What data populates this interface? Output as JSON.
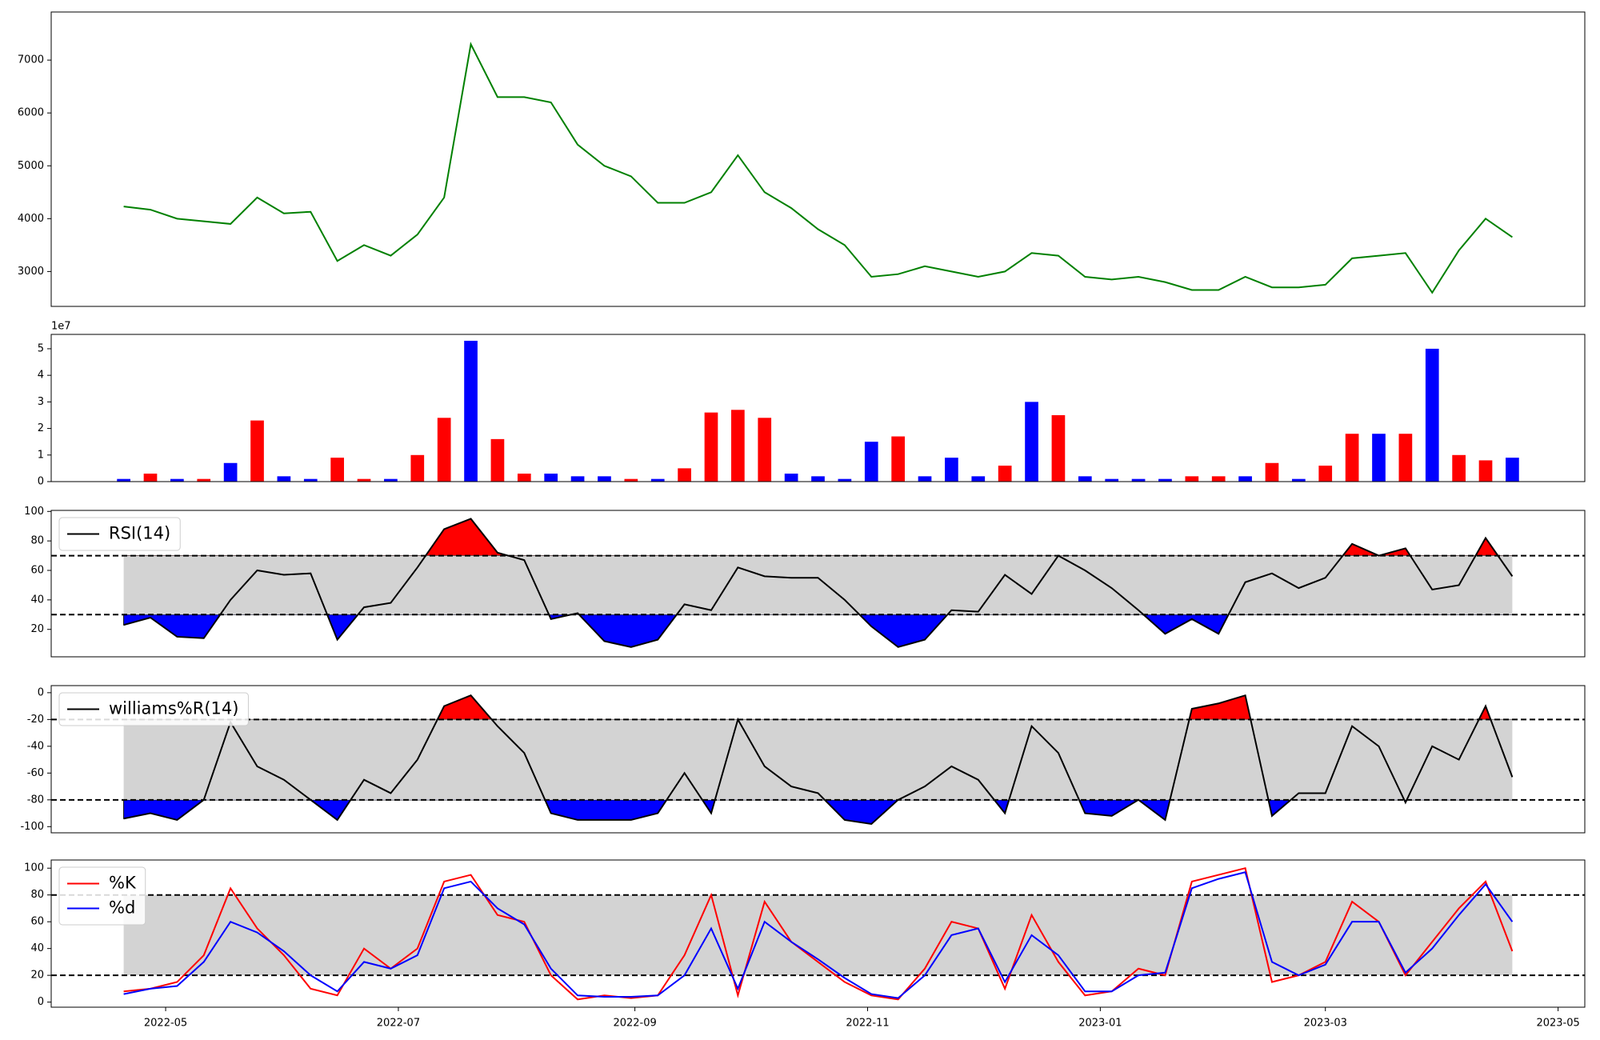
{
  "chart_data": [
    {
      "type": "line",
      "x": [
        "2022-04-20",
        "2022-04-27",
        "2022-05-04",
        "2022-05-11",
        "2022-05-18",
        "2022-05-25",
        "2022-06-01",
        "2022-06-08",
        "2022-06-15",
        "2022-06-22",
        "2022-06-29",
        "2022-07-06",
        "2022-07-13",
        "2022-07-20",
        "2022-07-27",
        "2022-08-03",
        "2022-08-10",
        "2022-08-17",
        "2022-08-24",
        "2022-08-31",
        "2022-09-07",
        "2022-09-14",
        "2022-09-21",
        "2022-09-28",
        "2022-10-05",
        "2022-10-12",
        "2022-10-19",
        "2022-10-26",
        "2022-11-02",
        "2022-11-09",
        "2022-11-16",
        "2022-11-23",
        "2022-11-30",
        "2022-12-07",
        "2022-12-14",
        "2022-12-21",
        "2022-12-28",
        "2023-01-04",
        "2023-01-11",
        "2023-01-18",
        "2023-01-25",
        "2023-02-01",
        "2023-02-08",
        "2023-02-15",
        "2023-02-22",
        "2023-03-01",
        "2023-03-08",
        "2023-03-15",
        "2023-03-22",
        "2023-03-29",
        "2023-04-05",
        "2023-04-12",
        "2023-04-19"
      ],
      "series": [
        {
          "color": "green",
          "values": [
            4230,
            4170,
            4000,
            3950,
            3900,
            4400,
            4100,
            4130,
            3200,
            3500,
            3300,
            3700,
            4400,
            7300,
            6300,
            6300,
            6200,
            5400,
            5000,
            4800,
            4300,
            4300,
            4500,
            5200,
            4500,
            4200,
            3800,
            3500,
            2900,
            2950,
            3100,
            3000,
            2900,
            3000,
            3350,
            3300,
            2900,
            2850,
            2900,
            2800,
            2650,
            2650,
            2900,
            2700,
            2700,
            2750,
            3250,
            3300,
            3350,
            2600,
            3400,
            4000,
            3650
          ]
        }
      ],
      "xlim": [
        "2022-04-01",
        "2023-05-08"
      ],
      "ylim": [
        2340,
        7910
      ],
      "yticks": [
        3000,
        4000,
        5000,
        6000,
        7000
      ]
    },
    {
      "type": "bar",
      "y_offset_label": "1e7",
      "x": [
        "2022-04-20",
        "2022-04-27",
        "2022-05-04",
        "2022-05-11",
        "2022-05-18",
        "2022-05-25",
        "2022-06-01",
        "2022-06-08",
        "2022-06-15",
        "2022-06-22",
        "2022-06-29",
        "2022-07-06",
        "2022-07-13",
        "2022-07-20",
        "2022-07-27",
        "2022-08-03",
        "2022-08-10",
        "2022-08-17",
        "2022-08-24",
        "2022-08-31",
        "2022-09-07",
        "2022-09-14",
        "2022-09-21",
        "2022-09-28",
        "2022-10-05",
        "2022-10-12",
        "2022-10-19",
        "2022-10-26",
        "2022-11-02",
        "2022-11-09",
        "2022-11-16",
        "2022-11-23",
        "2022-11-30",
        "2022-12-07",
        "2022-12-14",
        "2022-12-21",
        "2022-12-28",
        "2023-01-04",
        "2023-01-11",
        "2023-01-18",
        "2023-01-25",
        "2023-02-01",
        "2023-02-08",
        "2023-02-15",
        "2023-02-22",
        "2023-03-01",
        "2023-03-08",
        "2023-03-15",
        "2023-03-22",
        "2023-03-29",
        "2023-04-05",
        "2023-04-12",
        "2023-04-19"
      ],
      "values": [
        0.1,
        0.3,
        0.1,
        0.1,
        0.7,
        2.3,
        0.2,
        0.1,
        0.9,
        0.1,
        0.1,
        1.0,
        2.4,
        5.3,
        1.6,
        0.3,
        0.3,
        0.2,
        0.2,
        0.1,
        0.1,
        0.5,
        2.6,
        2.7,
        2.4,
        0.3,
        0.2,
        0.1,
        1.5,
        1.7,
        0.2,
        0.9,
        0.2,
        0.6,
        3.0,
        2.5,
        0.2,
        0.1,
        0.1,
        0.1,
        0.2,
        0.2,
        0.2,
        0.7,
        0.1,
        0.6,
        1.8,
        1.8,
        1.8,
        5.0,
        1.0,
        0.8,
        0.9
      ],
      "colors": [
        "blue",
        "red",
        "blue",
        "red",
        "blue",
        "red",
        "blue",
        "blue",
        "red",
        "red",
        "blue",
        "red",
        "red",
        "blue",
        "red",
        "red",
        "blue",
        "blue",
        "blue",
        "red",
        "blue",
        "red",
        "red",
        "red",
        "red",
        "blue",
        "blue",
        "blue",
        "blue",
        "red",
        "blue",
        "blue",
        "blue",
        "red",
        "blue",
        "red",
        "blue",
        "blue",
        "blue",
        "blue",
        "red",
        "red",
        "blue",
        "red",
        "blue",
        "red",
        "red",
        "blue",
        "red",
        "blue",
        "red",
        "red",
        "blue"
      ],
      "xlim": [
        "2022-04-01",
        "2023-05-08"
      ],
      "ylim": [
        0,
        5.54
      ],
      "yticks": [
        0,
        1,
        2,
        3,
        4,
        5
      ]
    },
    {
      "type": "oscillator",
      "x": [
        "2022-04-20",
        "2022-04-27",
        "2022-05-04",
        "2022-05-11",
        "2022-05-18",
        "2022-05-25",
        "2022-06-01",
        "2022-06-08",
        "2022-06-15",
        "2022-06-22",
        "2022-06-29",
        "2022-07-06",
        "2022-07-13",
        "2022-07-20",
        "2022-07-27",
        "2022-08-03",
        "2022-08-10",
        "2022-08-17",
        "2022-08-24",
        "2022-08-31",
        "2022-09-07",
        "2022-09-14",
        "2022-09-21",
        "2022-09-28",
        "2022-10-05",
        "2022-10-12",
        "2022-10-19",
        "2022-10-26",
        "2022-11-02",
        "2022-11-09",
        "2022-11-16",
        "2022-11-23",
        "2022-11-30",
        "2022-12-07",
        "2022-12-14",
        "2022-12-21",
        "2022-12-28",
        "2023-01-04",
        "2023-01-11",
        "2023-01-18",
        "2023-01-25",
        "2023-02-01",
        "2023-02-08",
        "2023-02-15",
        "2023-02-22",
        "2023-03-01",
        "2023-03-08",
        "2023-03-15",
        "2023-03-22",
        "2023-03-29",
        "2023-04-05",
        "2023-04-12",
        "2023-04-19"
      ],
      "series": [
        {
          "name": "RSI(14)",
          "color": "black",
          "above_color": "red",
          "below_color": "blue",
          "values": [
            23,
            28,
            15,
            14,
            40,
            60,
            57,
            58,
            13,
            35,
            38,
            62,
            88,
            95,
            72,
            67,
            27,
            31,
            12,
            8,
            13,
            37,
            33,
            62,
            56,
            55,
            55,
            40,
            22,
            8,
            13,
            33,
            32,
            57,
            44,
            70,
            60,
            48,
            33,
            17,
            27,
            17,
            52,
            58,
            48,
            55,
            78,
            70,
            75,
            47,
            50,
            82,
            56
          ]
        }
      ],
      "thresholds": [
        30,
        70
      ],
      "band_color": "lightgray",
      "xlim": [
        "2022-04-01",
        "2023-05-08"
      ],
      "ylim": [
        1.4,
        100.7
      ],
      "yticks": [
        20,
        40,
        60,
        80,
        100
      ]
    },
    {
      "type": "oscillator",
      "x": [
        "2022-04-20",
        "2022-04-27",
        "2022-05-04",
        "2022-05-11",
        "2022-05-18",
        "2022-05-25",
        "2022-06-01",
        "2022-06-08",
        "2022-06-15",
        "2022-06-22",
        "2022-06-29",
        "2022-07-06",
        "2022-07-13",
        "2022-07-20",
        "2022-07-27",
        "2022-08-03",
        "2022-08-10",
        "2022-08-17",
        "2022-08-24",
        "2022-08-31",
        "2022-09-07",
        "2022-09-14",
        "2022-09-21",
        "2022-09-28",
        "2022-10-05",
        "2022-10-12",
        "2022-10-19",
        "2022-10-26",
        "2022-11-02",
        "2022-11-09",
        "2022-11-16",
        "2022-11-23",
        "2022-11-30",
        "2022-12-07",
        "2022-12-14",
        "2022-12-21",
        "2022-12-28",
        "2023-01-04",
        "2023-01-11",
        "2023-01-18",
        "2023-01-25",
        "2023-02-01",
        "2023-02-08",
        "2023-02-15",
        "2023-02-22",
        "2023-03-01",
        "2023-03-08",
        "2023-03-15",
        "2023-03-22",
        "2023-03-29",
        "2023-04-05",
        "2023-04-12",
        "2023-04-19"
      ],
      "series": [
        {
          "name": "williams%R(14)",
          "color": "black",
          "above_color": "red",
          "below_color": "blue",
          "values": [
            -94,
            -90,
            -95,
            -80,
            -22,
            -55,
            -65,
            -80,
            -95,
            -65,
            -75,
            -50,
            -10,
            -2,
            -25,
            -45,
            -90,
            -95,
            -95,
            -95,
            -90,
            -60,
            -90,
            -20,
            -55,
            -70,
            -75,
            -95,
            -98,
            -80,
            -70,
            -55,
            -65,
            -90,
            -25,
            -45,
            -90,
            -92,
            -80,
            -95,
            -12,
            -8,
            -2,
            -92,
            -75,
            -75,
            -25,
            -40,
            -82,
            -40,
            -50,
            -10,
            -63
          ]
        }
      ],
      "thresholds": [
        -80,
        -20
      ],
      "band_color": "lightgray",
      "xlim": [
        "2022-04-01",
        "2023-05-08"
      ],
      "ylim": [
        -104.6,
        5.3
      ],
      "yticks": [
        -100,
        -80,
        -60,
        -40,
        -20,
        0
      ]
    },
    {
      "type": "oscillator",
      "x": [
        "2022-04-20",
        "2022-04-27",
        "2022-05-04",
        "2022-05-11",
        "2022-05-18",
        "2022-05-25",
        "2022-06-01",
        "2022-06-08",
        "2022-06-15",
        "2022-06-22",
        "2022-06-29",
        "2022-07-06",
        "2022-07-13",
        "2022-07-20",
        "2022-07-27",
        "2022-08-03",
        "2022-08-10",
        "2022-08-17",
        "2022-08-24",
        "2022-08-31",
        "2022-09-07",
        "2022-09-14",
        "2022-09-21",
        "2022-09-28",
        "2022-10-05",
        "2022-10-12",
        "2022-10-19",
        "2022-10-26",
        "2022-11-02",
        "2022-11-09",
        "2022-11-16",
        "2022-11-23",
        "2022-11-30",
        "2022-12-07",
        "2022-12-14",
        "2022-12-21",
        "2022-12-28",
        "2023-01-04",
        "2023-01-11",
        "2023-01-18",
        "2023-01-25",
        "2023-02-01",
        "2023-02-08",
        "2023-02-15",
        "2023-02-22",
        "2023-03-01",
        "2023-03-08",
        "2023-03-15",
        "2023-03-22",
        "2023-03-29",
        "2023-04-05",
        "2023-04-12",
        "2023-04-19"
      ],
      "series": [
        {
          "name": "%K",
          "color": "red",
          "values": [
            8,
            10,
            15,
            35,
            85,
            55,
            35,
            10,
            5,
            40,
            25,
            40,
            90,
            95,
            65,
            60,
            20,
            2,
            5,
            3,
            5,
            35,
            80,
            5,
            75,
            45,
            30,
            15,
            5,
            2,
            25,
            60,
            55,
            10,
            65,
            30,
            5,
            8,
            25,
            20,
            90,
            95,
            100,
            15,
            20,
            30,
            75,
            60,
            20,
            45,
            70,
            90,
            38
          ]
        },
        {
          "name": "%d",
          "color": "blue",
          "values": [
            6,
            10,
            12,
            30,
            60,
            52,
            38,
            20,
            8,
            30,
            25,
            35,
            85,
            90,
            70,
            58,
            25,
            5,
            4,
            4,
            5,
            20,
            55,
            10,
            60,
            45,
            32,
            18,
            6,
            3,
            20,
            50,
            55,
            15,
            50,
            35,
            8,
            8,
            20,
            22,
            85,
            92,
            97,
            30,
            20,
            28,
            60,
            60,
            22,
            40,
            65,
            88,
            60
          ]
        }
      ],
      "thresholds": [
        20,
        80
      ],
      "band_color": "lightgray",
      "xlim": [
        "2022-04-01",
        "2023-05-08"
      ],
      "ylim": [
        -3.8,
        106.1
      ],
      "yticks": [
        0,
        20,
        40,
        60,
        80,
        100
      ],
      "xticks": [
        {
          "value": "2022-05-01",
          "label": "2022-05"
        },
        {
          "value": "2022-07-01",
          "label": "2022-07"
        },
        {
          "value": "2022-09-01",
          "label": "2022-09"
        },
        {
          "value": "2022-11-01",
          "label": "2022-11"
        },
        {
          "value": "2023-01-01",
          "label": "2023-01"
        },
        {
          "value": "2023-03-01",
          "label": "2023-03"
        },
        {
          "value": "2023-05-01",
          "label": "2023-05"
        }
      ]
    }
  ]
}
